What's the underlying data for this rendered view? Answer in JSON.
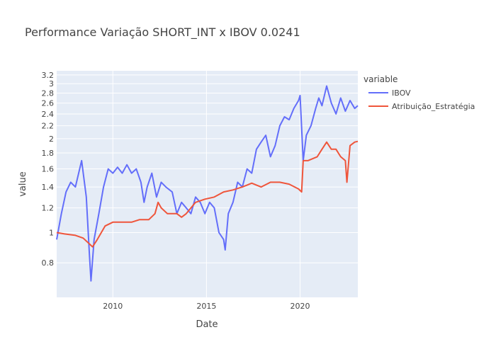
{
  "chart_data": {
    "type": "line",
    "title": "Performance Variação SHORT_INT x IBOV 0.0241",
    "xlabel": "Date",
    "ylabel": "value",
    "y_scale": "log",
    "xlim": [
      "2007-01-01",
      "2023-02-01"
    ],
    "ylim": [
      0.62,
      3.3
    ],
    "x_ticks": [
      "2010",
      "2015",
      "2020"
    ],
    "y_ticks": [
      "0.8",
      "1",
      "1.2",
      "1.4",
      "1.6",
      "1.8",
      "2",
      "2.2",
      "2.4",
      "2.6",
      "2.8",
      "3",
      "3.2"
    ],
    "grid": true,
    "legend": {
      "title": "variable",
      "position": "right"
    },
    "colors": {
      "plot_bg": "#e5ecf6",
      "grid": "#ffffff",
      "IBOV": "#636efa",
      "Atribuição_Estratégia": "#ef553b"
    },
    "series": [
      {
        "name": "IBOV",
        "x": [
          "2007-01",
          "2007-04",
          "2007-07",
          "2007-10",
          "2008-01",
          "2008-05",
          "2008-08",
          "2008-10",
          "2008-11",
          "2009-01",
          "2009-04",
          "2009-07",
          "2009-10",
          "2010-01",
          "2010-04",
          "2010-07",
          "2010-10",
          "2011-01",
          "2011-04",
          "2011-07",
          "2011-09",
          "2011-11",
          "2012-02",
          "2012-05",
          "2012-08",
          "2012-11",
          "2013-03",
          "2013-06",
          "2013-09",
          "2013-12",
          "2014-03",
          "2014-06",
          "2014-09",
          "2014-12",
          "2015-03",
          "2015-06",
          "2015-09",
          "2015-12",
          "2016-01",
          "2016-03",
          "2016-06",
          "2016-09",
          "2016-12",
          "2017-03",
          "2017-06",
          "2017-09",
          "2017-12",
          "2018-03",
          "2018-06",
          "2018-09",
          "2018-12",
          "2019-03",
          "2019-06",
          "2019-09",
          "2019-12",
          "2020-01",
          "2020-03",
          "2020-05",
          "2020-08",
          "2020-11",
          "2021-01",
          "2021-03",
          "2021-06",
          "2021-09",
          "2021-12",
          "2022-03",
          "2022-06",
          "2022-09",
          "2022-12",
          "2023-02"
        ],
        "values": [
          0.95,
          1.15,
          1.35,
          1.45,
          1.4,
          1.7,
          1.3,
          0.85,
          0.7,
          0.95,
          1.15,
          1.4,
          1.6,
          1.55,
          1.62,
          1.55,
          1.65,
          1.55,
          1.6,
          1.45,
          1.25,
          1.4,
          1.55,
          1.3,
          1.45,
          1.4,
          1.35,
          1.15,
          1.25,
          1.2,
          1.15,
          1.3,
          1.25,
          1.15,
          1.25,
          1.2,
          1.0,
          0.95,
          0.88,
          1.15,
          1.25,
          1.45,
          1.4,
          1.6,
          1.55,
          1.85,
          1.95,
          2.05,
          1.75,
          1.9,
          2.2,
          2.35,
          2.3,
          2.5,
          2.65,
          2.75,
          1.7,
          2.05,
          2.2,
          2.5,
          2.7,
          2.55,
          2.95,
          2.6,
          2.4,
          2.7,
          2.45,
          2.65,
          2.5,
          2.55
        ]
      },
      {
        "name": "Atribuição_Estratégia",
        "x": [
          "2007-01",
          "2007-06",
          "2008-01",
          "2008-06",
          "2008-10",
          "2008-12",
          "2009-03",
          "2009-08",
          "2010-01",
          "2010-06",
          "2011-01",
          "2011-06",
          "2011-12",
          "2012-04",
          "2012-06",
          "2012-08",
          "2012-12",
          "2013-06",
          "2013-09",
          "2013-12",
          "2014-06",
          "2014-12",
          "2015-06",
          "2015-12",
          "2016-06",
          "2016-12",
          "2017-03",
          "2017-06",
          "2017-09",
          "2017-12",
          "2018-06",
          "2018-12",
          "2019-06",
          "2019-12",
          "2020-02",
          "2020-03",
          "2020-06",
          "2020-12",
          "2021-03",
          "2021-06",
          "2021-09",
          "2021-12",
          "2022-03",
          "2022-06",
          "2022-07",
          "2022-09",
          "2022-12",
          "2023-02"
        ],
        "values": [
          1.0,
          0.99,
          0.98,
          0.96,
          0.92,
          0.9,
          0.95,
          1.05,
          1.08,
          1.08,
          1.08,
          1.1,
          1.1,
          1.15,
          1.25,
          1.2,
          1.15,
          1.15,
          1.12,
          1.15,
          1.25,
          1.28,
          1.3,
          1.35,
          1.37,
          1.4,
          1.42,
          1.44,
          1.42,
          1.4,
          1.45,
          1.45,
          1.43,
          1.38,
          1.35,
          1.7,
          1.7,
          1.75,
          1.85,
          1.95,
          1.85,
          1.85,
          1.75,
          1.7,
          1.45,
          1.9,
          1.95,
          1.96
        ]
      }
    ]
  }
}
